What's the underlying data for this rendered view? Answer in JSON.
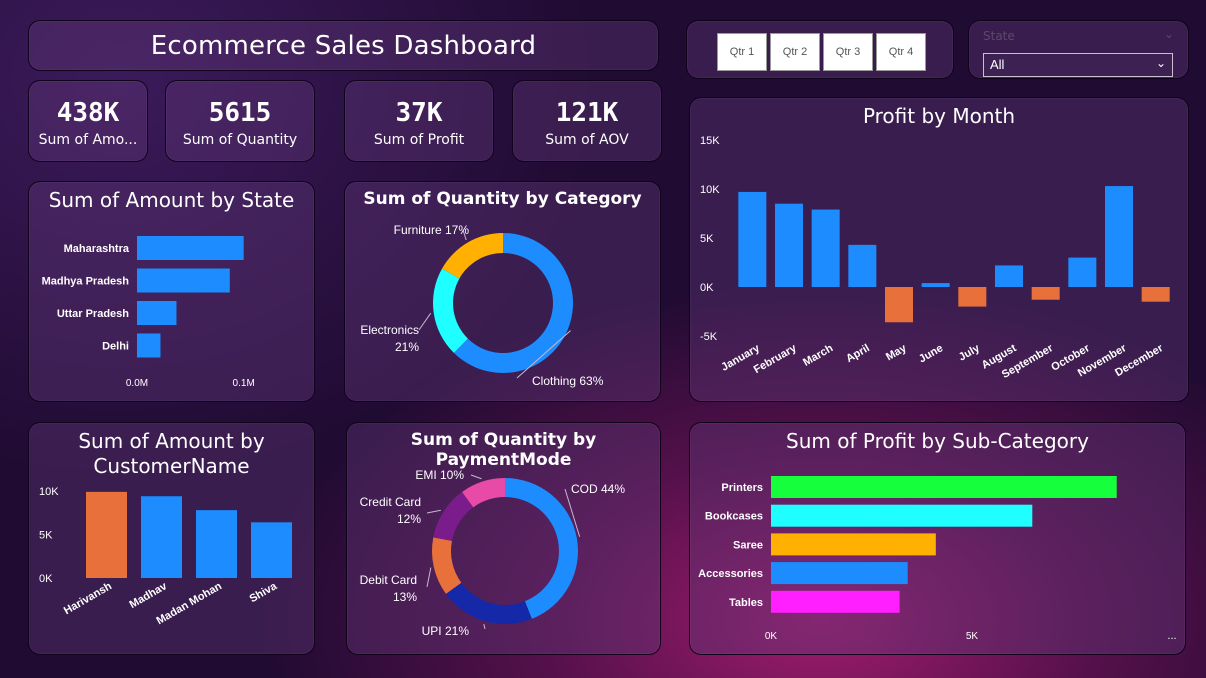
{
  "header": {
    "title": "Ecommerce Sales Dashboard"
  },
  "kpis": [
    {
      "value": "438K",
      "label": "Sum of Amo..."
    },
    {
      "value": "5615",
      "label": "Sum of Quantity"
    },
    {
      "value": "37K",
      "label": "Sum of Profit"
    },
    {
      "value": "121K",
      "label": "Sum of AOV"
    }
  ],
  "quarter_slicer": {
    "buttons": [
      "Qtr 1",
      "Qtr 2",
      "Qtr 3",
      "Qtr 4"
    ]
  },
  "state_slicer": {
    "label": "State",
    "selected": "All"
  },
  "colors": {
    "blue": "#1c8cff",
    "orange": "#e8703a",
    "green": "#16ff3c",
    "cyan": "#1fffff",
    "amber": "#ffb000",
    "magenta": "#ff1fff",
    "purple": "#7a1c8c",
    "navy": "#1528a8",
    "pink": "#e84aa8"
  },
  "chart_data": [
    {
      "id": "amount_by_state",
      "type": "bar",
      "orientation": "horizontal",
      "title": "Sum of Amount by State",
      "categories": [
        "Maharashtra",
        "Madhya Pradesh",
        "Uttar Pradesh",
        "Delhi"
      ],
      "values": [
        0.1,
        0.087,
        0.037,
        0.022
      ],
      "xlim": [
        0,
        0.12
      ],
      "xticks": [
        {
          "value": 0,
          "label": "0.0M"
        },
        {
          "value": 0.1,
          "label": "0.1M"
        }
      ]
    },
    {
      "id": "quantity_by_category",
      "type": "pie",
      "donut": true,
      "title": "Sum of Quantity by Category",
      "slices": [
        {
          "label": "Clothing",
          "pct_label": "63%",
          "value": 63,
          "color": "#1c8cff"
        },
        {
          "label": "Electronics",
          "pct_label": "21%",
          "value": 21,
          "color": "#1fffff"
        },
        {
          "label": "Furniture",
          "pct_label": "17%",
          "value": 17,
          "color": "#ffb000"
        }
      ]
    },
    {
      "id": "profit_by_month",
      "type": "bar",
      "title": "Profit by Month",
      "categories": [
        "January",
        "February",
        "March",
        "April",
        "May",
        "June",
        "July",
        "August",
        "September",
        "October",
        "November",
        "December"
      ],
      "values": [
        9700,
        8500,
        7900,
        4300,
        -3600,
        400,
        -2000,
        2200,
        -1300,
        3000,
        10300,
        -1500
      ],
      "ylim": [
        -5000,
        15000
      ],
      "yticks": [
        {
          "value": -5000,
          "label": "-5K"
        },
        {
          "value": 0,
          "label": "0K"
        },
        {
          "value": 5000,
          "label": "5K"
        },
        {
          "value": 10000,
          "label": "10K"
        },
        {
          "value": 15000,
          "label": "15K"
        }
      ],
      "positive_color": "#1c8cff",
      "negative_color": "#e8703a"
    },
    {
      "id": "amount_by_customer",
      "type": "bar",
      "title": "Sum of Amount by CustomerName",
      "title_lines": [
        "Sum of Amount by",
        "CustomerName"
      ],
      "categories": [
        "Harivansh",
        "Madhav",
        "Madan Mohan",
        "Shiva"
      ],
      "values": [
        9900,
        9400,
        7800,
        6400
      ],
      "colors": [
        "#e8703a",
        "#1c8cff",
        "#1c8cff",
        "#1c8cff"
      ],
      "ylim": [
        0,
        10000
      ],
      "yticks": [
        {
          "value": 0,
          "label": "0K"
        },
        {
          "value": 5000,
          "label": "5K"
        },
        {
          "value": 10000,
          "label": "10K"
        }
      ]
    },
    {
      "id": "quantity_by_paymentmode",
      "type": "pie",
      "donut": true,
      "title": "Sum of Quantity by PaymentMode",
      "slices": [
        {
          "label": "COD",
          "pct_label": "44%",
          "value": 44,
          "color": "#1c8cff"
        },
        {
          "label": "UPI",
          "pct_label": "21%",
          "value": 21,
          "color": "#1528a8"
        },
        {
          "label": "Debit Card",
          "pct_label": "13%",
          "value": 13,
          "color": "#e8703a"
        },
        {
          "label": "Credit Card",
          "pct_label": "12%",
          "value": 12,
          "color": "#7a1c8c"
        },
        {
          "label": "EMI",
          "pct_label": "10%",
          "value": 10,
          "color": "#e84aa8"
        }
      ]
    },
    {
      "id": "profit_by_subcategory",
      "type": "bar",
      "orientation": "horizontal",
      "title": "Sum of Profit by Sub-Category",
      "categories": [
        "Printers",
        "Bookcases",
        "Saree",
        "Accessories",
        "Tables"
      ],
      "values": [
        8600,
        6500,
        4100,
        3400,
        3200
      ],
      "colors": [
        "#16ff3c",
        "#1fffff",
        "#ffb000",
        "#1c8cff",
        "#ff1fff"
      ],
      "xlim": [
        0,
        10000
      ],
      "xticks": [
        {
          "value": 0,
          "label": "0K"
        },
        {
          "value": 5000,
          "label": "5K"
        }
      ],
      "more_indicator": "..."
    }
  ]
}
